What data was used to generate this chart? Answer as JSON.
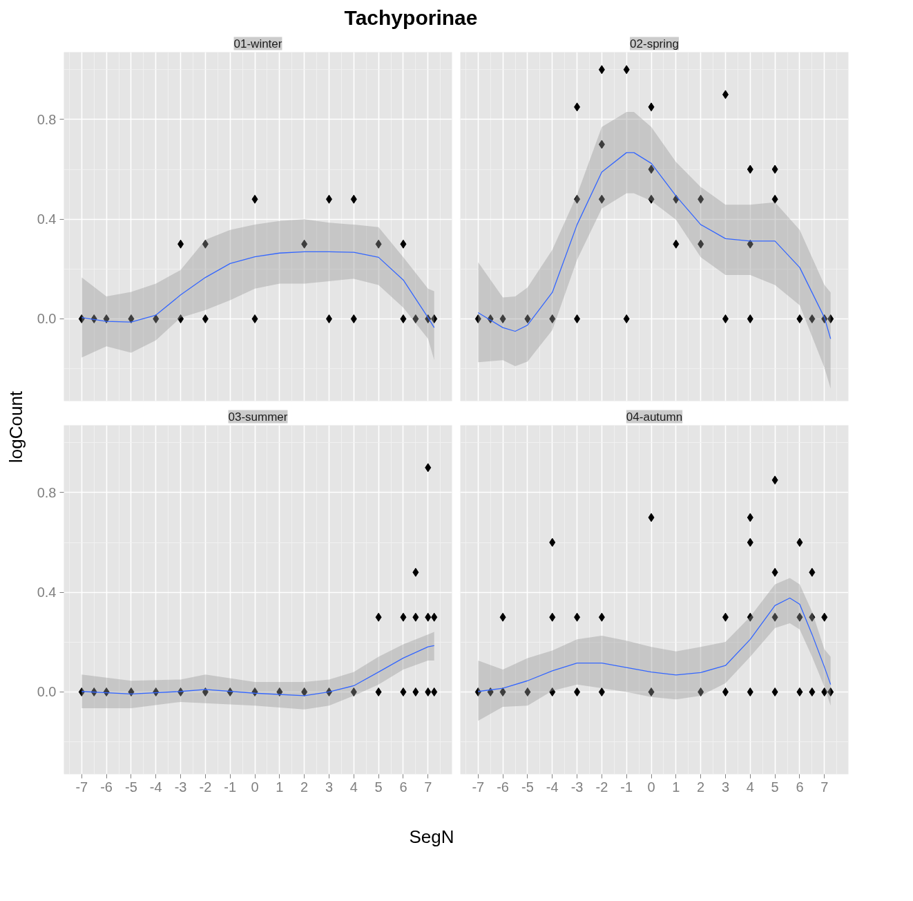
{
  "chart_data": [
    {
      "type": "scatter",
      "title": "01-winter",
      "annotations": [
        "Tachyporinae"
      ],
      "ylabel": "logCount",
      "xlim": [
        -7.72,
        7.97
      ],
      "ylim": [
        -0.33,
        1.07
      ],
      "xticks": [
        -7,
        -6,
        -5,
        -4,
        -3,
        -2,
        -1,
        0,
        1,
        2,
        3,
        4,
        5,
        6,
        7
      ],
      "yticks": [
        {
          "value": 0,
          "label": "0.0"
        },
        {
          "value": 0.4,
          "label": "0.4"
        },
        {
          "value": 0.8,
          "label": "0.8"
        }
      ],
      "tick_labels": "y",
      "grid": true,
      "marker": "diamond",
      "series": [
        {
          "color": "#000000",
          "x": [
            -7,
            -6.5,
            -6,
            -5,
            -4,
            -3,
            -3,
            -2,
            -2,
            0,
            0,
            2,
            3,
            3,
            4,
            4,
            5,
            6,
            6,
            6.5,
            7,
            7.25
          ],
          "values": [
            0,
            0,
            0,
            0,
            0,
            0.3,
            0,
            0.3,
            0,
            0.48,
            0,
            0.3,
            0.48,
            0,
            0.48,
            0,
            0.3,
            0.3,
            0,
            0,
            0,
            0
          ]
        },
        {
          "type": "line",
          "marker": "none",
          "color": "#3366ff",
          "x": [
            -7,
            -6,
            -5,
            -4,
            -3,
            -2,
            -1,
            0,
            1,
            2,
            3,
            4,
            5,
            6,
            7,
            7.25
          ],
          "values": [
            0.005,
            -0.01,
            -0.013,
            0.015,
            0.096,
            0.166,
            0.222,
            0.249,
            0.264,
            0.269,
            0.269,
            0.267,
            0.247,
            0.156,
            0.005,
            -0.035
          ],
          "lower": [
            -0.155,
            -0.11,
            -0.136,
            -0.086,
            0.005,
            0.035,
            0.075,
            0.121,
            0.141,
            0.141,
            0.151,
            0.161,
            0.136,
            0.045,
            -0.08,
            -0.166
          ],
          "upper": [
            0.166,
            0.09,
            0.108,
            0.141,
            0.196,
            0.317,
            0.357,
            0.378,
            0.393,
            0.4,
            0.386,
            0.378,
            0.368,
            0.247,
            0.121,
            0.111
          ]
        }
      ]
    },
    {
      "type": "scatter",
      "title": "02-spring",
      "xlim": [
        -7.72,
        7.97
      ],
      "ylim": [
        -0.33,
        1.07
      ],
      "xticks": [
        -7,
        -6,
        -5,
        -4,
        -3,
        -2,
        -1,
        0,
        1,
        2,
        3,
        4,
        5,
        6,
        7
      ],
      "yticks": [
        0,
        0.4,
        0.8
      ],
      "tick_labels": false,
      "grid": true,
      "marker": "diamond",
      "series": [
        {
          "color": "#000000",
          "x": [
            -7,
            -6.5,
            -6,
            -5,
            -4,
            -3,
            -3,
            -3,
            -2,
            -2,
            -2,
            -1,
            -1,
            0,
            0,
            0,
            1,
            1,
            2,
            2,
            3,
            3,
            4,
            4,
            4,
            5,
            5,
            6,
            6.5,
            7,
            7.25
          ],
          "values": [
            0,
            0,
            0,
            0,
            0,
            0.85,
            0.48,
            0,
            1.0,
            0.7,
            0.48,
            1.0,
            0,
            0.85,
            0.6,
            0.48,
            0.48,
            0.3,
            0.48,
            0.3,
            0.9,
            0,
            0.6,
            0.3,
            0,
            0.6,
            0.48,
            0,
            0,
            0,
            0
          ]
        },
        {
          "type": "line",
          "marker": "none",
          "color": "#3366ff",
          "x": [
            -7,
            -6,
            -5.5,
            -5,
            -4,
            -3,
            -2,
            -1,
            -0.7,
            0,
            1,
            2,
            3,
            4,
            5,
            6,
            7,
            7.25
          ],
          "values": [
            0.025,
            -0.035,
            -0.05,
            -0.025,
            0.106,
            0.378,
            0.589,
            0.667,
            0.667,
            0.624,
            0.493,
            0.378,
            0.322,
            0.312,
            0.312,
            0.206,
            0.005,
            -0.08
          ],
          "lower": [
            -0.174,
            -0.166,
            -0.19,
            -0.171,
            -0.045,
            0.237,
            0.443,
            0.504,
            0.504,
            0.473,
            0.398,
            0.247,
            0.176,
            0.176,
            0.136,
            0.055,
            -0.196,
            -0.28
          ],
          "upper": [
            0.227,
            0.086,
            0.09,
            0.126,
            0.277,
            0.498,
            0.77,
            0.83,
            0.83,
            0.77,
            0.629,
            0.529,
            0.458,
            0.458,
            0.468,
            0.357,
            0.136,
            0.106
          ]
        }
      ]
    },
    {
      "type": "scatter",
      "title": "03-summer",
      "xlabel": "SegN",
      "xlim": [
        -7.72,
        7.97
      ],
      "ylim": [
        -0.33,
        1.07
      ],
      "xticks": [
        -7,
        -6,
        -5,
        -4,
        -3,
        -2,
        -1,
        0,
        1,
        2,
        3,
        4,
        5,
        6,
        7
      ],
      "yticks": [
        {
          "value": 0,
          "label": "0.0"
        },
        {
          "value": 0.4,
          "label": "0.4"
        },
        {
          "value": 0.8,
          "label": "0.8"
        }
      ],
      "grid": true,
      "marker": "diamond",
      "series": [
        {
          "color": "#000000",
          "x": [
            -7,
            -6.5,
            -6,
            -5,
            -4,
            -3,
            -2,
            -1,
            0,
            1,
            2,
            3,
            4,
            5,
            5,
            6,
            6,
            6.5,
            6.5,
            6.5,
            7,
            7,
            7,
            7.25,
            7.25
          ],
          "values": [
            0,
            0,
            0,
            0,
            0,
            0,
            0,
            0,
            0,
            0,
            0,
            0,
            0,
            0.3,
            0,
            0.3,
            0,
            0.48,
            0.3,
            0,
            0.9,
            0.3,
            0,
            0.3,
            0
          ]
        },
        {
          "type": "line",
          "marker": "none",
          "color": "#3366ff",
          "x": [
            -7,
            -5,
            -3,
            -2,
            0,
            2,
            3,
            4,
            5,
            6,
            7,
            7.25
          ],
          "values": [
            0.002,
            -0.008,
            0.002,
            0.01,
            -0.005,
            -0.015,
            0,
            0.025,
            0.08,
            0.136,
            0.181,
            0.186
          ],
          "lower": [
            -0.065,
            -0.065,
            -0.04,
            -0.045,
            -0.055,
            -0.07,
            -0.055,
            -0.015,
            0.03,
            0.09,
            0.126,
            0.126
          ],
          "upper": [
            0.07,
            0.045,
            0.05,
            0.07,
            0.04,
            0.04,
            0.05,
            0.08,
            0.141,
            0.191,
            0.231,
            0.241
          ]
        }
      ]
    },
    {
      "type": "scatter",
      "title": "04-autumn",
      "xlim": [
        -7.72,
        7.97
      ],
      "ylim": [
        -0.33,
        1.07
      ],
      "xticks": [
        -7,
        -6,
        -5,
        -4,
        -3,
        -2,
        -1,
        0,
        1,
        2,
        3,
        4,
        5,
        6,
        7
      ],
      "yticks": [
        0,
        0.4,
        0.8
      ],
      "tick_labels": "x",
      "grid": true,
      "marker": "diamond",
      "series": [
        {
          "color": "#000000",
          "x": [
            -7,
            -6.5,
            -6,
            -6,
            -5,
            -4,
            -4,
            -4,
            -3,
            -3,
            -2,
            -2,
            0,
            0,
            2,
            3,
            3,
            4,
            4,
            4,
            4,
            5,
            5,
            5,
            5,
            6,
            6,
            6,
            6.5,
            6.5,
            6.5,
            7,
            7,
            7.25
          ],
          "values": [
            0,
            0,
            0.3,
            0,
            0,
            0.6,
            0.3,
            0,
            0.3,
            0,
            0.3,
            0,
            0.7,
            0,
            0,
            0.3,
            0,
            0.7,
            0.6,
            0.3,
            0,
            0.85,
            0.48,
            0.3,
            0,
            0.6,
            0.3,
            0,
            0.48,
            0.3,
            0,
            0.3,
            0,
            0
          ]
        },
        {
          "type": "line",
          "marker": "none",
          "color": "#3366ff",
          "x": [
            -7,
            -6,
            -5,
            -4,
            -3,
            -2,
            -1,
            0,
            1,
            2,
            3,
            4,
            5,
            5.6,
            6,
            6.5,
            7,
            7.25
          ],
          "values": [
            0.002,
            0.015,
            0.045,
            0.085,
            0.116,
            0.116,
            0.098,
            0.08,
            0.068,
            0.078,
            0.106,
            0.211,
            0.347,
            0.377,
            0.352,
            0.231,
            0.1,
            0.03
          ],
          "lower": [
            -0.116,
            -0.06,
            -0.055,
            0.005,
            0.03,
            0.015,
            0,
            -0.02,
            -0.03,
            -0.015,
            0.035,
            0.141,
            0.256,
            0.276,
            0.251,
            0.141,
            0.02,
            -0.055
          ],
          "upper": [
            0.126,
            0.09,
            0.136,
            0.166,
            0.211,
            0.226,
            0.206,
            0.181,
            0.163,
            0.181,
            0.201,
            0.302,
            0.432,
            0.457,
            0.432,
            0.322,
            0.171,
            0.141
          ]
        }
      ]
    }
  ]
}
